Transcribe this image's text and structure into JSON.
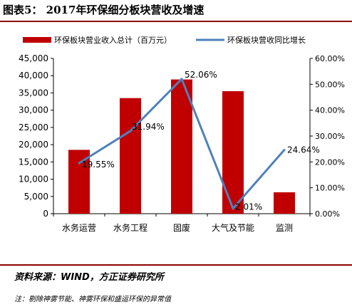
{
  "figure": {
    "title": "图表5：  2017年环保细分板块营收及增速",
    "source": "资料来源：WIND，方正证券研究所",
    "note": "注：剔除神雾节能、神雾环保和盛运环保的异常值"
  },
  "colors": {
    "bar": "#c00000",
    "line": "#4f81bd",
    "rule": "#8b0000"
  },
  "chart_data": {
    "type": "bar",
    "categories": [
      "水务运营",
      "水务工程",
      "固废",
      "大气及节能",
      "监测"
    ],
    "series": [
      {
        "name": "环保板块营业收入总计（百万元）",
        "type": "bar",
        "axis": "left",
        "values": [
          18500,
          33500,
          38900,
          35500,
          6200
        ]
      },
      {
        "name": "环保板块营收同比增长",
        "type": "line",
        "axis": "right",
        "values": [
          19.55,
          31.94,
          52.06,
          2.01,
          24.64
        ],
        "labels": [
          "19.55%",
          "31.94%",
          "52.06%",
          "2.01%",
          "24.64%"
        ]
      }
    ],
    "y_left": {
      "min": 0,
      "max": 45000,
      "step": 5000,
      "ticks": [
        "0",
        "5,000",
        "10,000",
        "15,000",
        "20,000",
        "25,000",
        "30,000",
        "35,000",
        "40,000",
        "45,000"
      ]
    },
    "y_right": {
      "min": 0,
      "max": 60,
      "step": 10,
      "ticks": [
        "0.00%",
        "10.00%",
        "20.00%",
        "30.00%",
        "40.00%",
        "50.00%",
        "60.00%"
      ]
    },
    "legend_position": "top",
    "grid": false
  }
}
